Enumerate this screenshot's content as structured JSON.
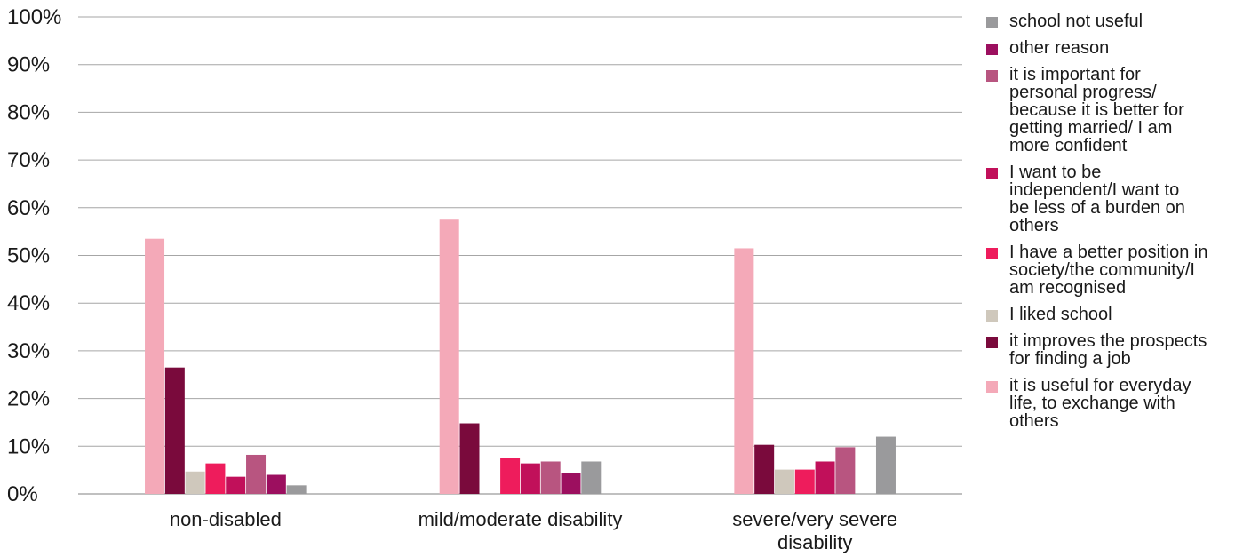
{
  "chart_data": {
    "type": "bar",
    "categories": [
      "non-disabled",
      "mild/moderate disability",
      "severe/very severe disability"
    ],
    "category_lines": [
      [
        "non-disabled"
      ],
      [
        "mild/moderate disability"
      ],
      [
        "severe/very severe",
        "disability"
      ]
    ],
    "ylim": [
      0,
      100
    ],
    "yticks": [
      "0%",
      "10%",
      "20%",
      "30%",
      "40%",
      "50%",
      "60%",
      "70%",
      "80%",
      "90%",
      "100%"
    ],
    "grid": true,
    "legend_position": "right",
    "series": [
      {
        "name": "it is useful for everyday life, to exchange with others",
        "color": "#f4a9b8",
        "values": [
          53.5,
          57.5,
          51.5
        ]
      },
      {
        "name": "it improves the prospects for finding a job",
        "color": "#7a0a3c",
        "values": [
          26.5,
          14.8,
          10.3
        ]
      },
      {
        "name": "I liked school",
        "color": "#cfc8bc",
        "values": [
          4.7,
          0,
          5.1
        ]
      },
      {
        "name": "I have a better position in society/the community/I am recognised",
        "color": "#ee1c5c",
        "values": [
          6.4,
          7.5,
          5.1
        ]
      },
      {
        "name": "I want to be independent/I want to be less of a burden on others",
        "color": "#c1105a",
        "values": [
          3.6,
          6.4,
          6.8
        ]
      },
      {
        "name": "it is important for personal progress/ because it is better for getting married/ I am more confident",
        "color": "#b85580",
        "values": [
          8.2,
          6.8,
          9.8
        ]
      },
      {
        "name": "other reason",
        "color": "#9c0f5f",
        "values": [
          4.0,
          4.3,
          0
        ]
      },
      {
        "name": "school not useful",
        "color": "#9a9a9c",
        "values": [
          1.8,
          6.8,
          12.0
        ]
      }
    ],
    "legend": [
      {
        "label_lines": [
          "school not useful"
        ],
        "color": "#9a9a9c"
      },
      {
        "label_lines": [
          "other reason"
        ],
        "color": "#9c0f5f"
      },
      {
        "label_lines": [
          "it is important for",
          "personal progress/",
          "because it is better for",
          "getting married/ I am",
          "more confident"
        ],
        "color": "#b85580"
      },
      {
        "label_lines": [
          "I want to be",
          "independent/I want to",
          "be less of a burden on",
          "others"
        ],
        "color": "#c1105a"
      },
      {
        "label_lines": [
          "I have a better position in",
          "society/the community/I",
          "am recognised"
        ],
        "color": "#ee1c5c"
      },
      {
        "label_lines": [
          "I liked school"
        ],
        "color": "#cfc8bc"
      },
      {
        "label_lines": [
          "it improves the prospects",
          "for finding a job"
        ],
        "color": "#7a0a3c"
      },
      {
        "label_lines": [
          "it is useful for everyday",
          "life, to exchange with",
          "others"
        ],
        "color": "#f4a9b8"
      }
    ]
  }
}
